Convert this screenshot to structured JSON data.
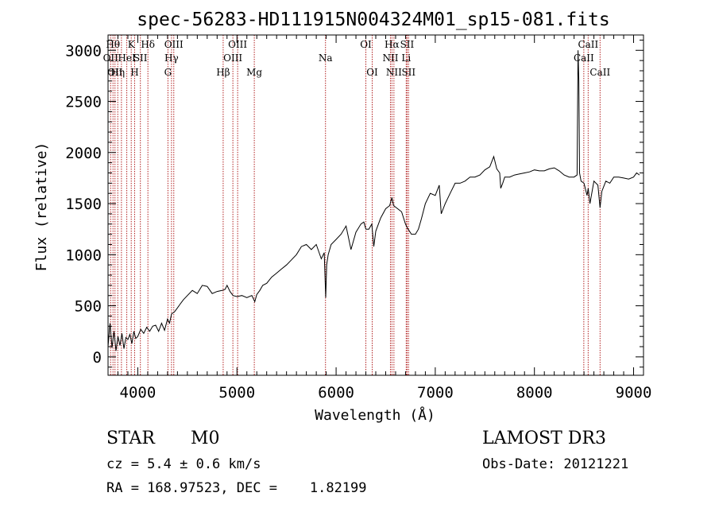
{
  "chart_data": {
    "type": "line",
    "title": "spec-56283-HD111915N004324M01_sp15-081.fits",
    "xlabel": "Wavelength (Å)",
    "ylabel": "Flux (relative)",
    "xlim": [
      3700,
      9100
    ],
    "ylim": [
      -180,
      3150
    ],
    "xticks": [
      4000,
      5000,
      6000,
      7000,
      8000,
      9000
    ],
    "yticks": [
      0,
      500,
      1000,
      1500,
      2000,
      2500,
      3000
    ],
    "series": [
      {
        "x": [
          3700,
          3720,
          3740,
          3760,
          3780,
          3800,
          3820,
          3840,
          3860,
          3880,
          3900,
          3920,
          3940,
          3960,
          3980,
          4000,
          4030,
          4060,
          4090,
          4120,
          4150,
          4180,
          4210,
          4240,
          4270,
          4300,
          4320,
          4340,
          4370,
          4400,
          4430,
          4460,
          4500,
          4550,
          4600,
          4650,
          4700,
          4750,
          4800,
          4850,
          4880,
          4900,
          4930,
          4960,
          5000,
          5050,
          5100,
          5150,
          5180,
          5200,
          5230,
          5260,
          5300,
          5350,
          5400,
          5450,
          5500,
          5550,
          5600,
          5650,
          5700,
          5750,
          5800,
          5850,
          5880,
          5895,
          5905,
          5920,
          5950,
          6000,
          6050,
          6100,
          6150,
          6200,
          6250,
          6280,
          6300,
          6330,
          6360,
          6380,
          6400,
          6450,
          6500,
          6540,
          6563,
          6580,
          6620,
          6660,
          6700,
          6720,
          6760,
          6800,
          6830,
          6860,
          6900,
          6950,
          7000,
          7040,
          7060,
          7080,
          7100,
          7150,
          7200,
          7250,
          7300,
          7350,
          7400,
          7450,
          7500,
          7550,
          7590,
          7620,
          7650,
          7660,
          7680,
          7700,
          7750,
          7800,
          7850,
          7900,
          7950,
          8000,
          8050,
          8100,
          8150,
          8200,
          8250,
          8300,
          8350,
          8400,
          8430,
          8440,
          8448,
          8455,
          8470,
          8500,
          8530,
          8542,
          8560,
          8600,
          8640,
          8662,
          8680,
          8720,
          8760,
          8800,
          8850,
          8900,
          8950,
          9000,
          9030,
          9060
        ],
        "y": [
          100,
          330,
          90,
          250,
          60,
          200,
          110,
          230,
          80,
          190,
          170,
          220,
          130,
          250,
          180,
          200,
          270,
          230,
          290,
          250,
          300,
          310,
          250,
          330,
          260,
          370,
          330,
          420,
          440,
          480,
          520,
          560,
          600,
          650,
          620,
          700,
          690,
          620,
          640,
          650,
          660,
          700,
          640,
          600,
          590,
          600,
          580,
          600,
          540,
          610,
          650,
          700,
          720,
          780,
          820,
          860,
          900,
          950,
          1000,
          1080,
          1100,
          1050,
          1100,
          960,
          1020,
          580,
          900,
          1000,
          1100,
          1150,
          1200,
          1280,
          1050,
          1220,
          1300,
          1320,
          1250,
          1250,
          1300,
          1080,
          1230,
          1360,
          1450,
          1480,
          1560,
          1480,
          1450,
          1420,
          1300,
          1260,
          1200,
          1200,
          1250,
          1350,
          1500,
          1600,
          1580,
          1680,
          1400,
          1450,
          1500,
          1600,
          1700,
          1700,
          1720,
          1760,
          1760,
          1780,
          1830,
          1860,
          1960,
          1840,
          1800,
          1650,
          1700,
          1760,
          1760,
          1780,
          1790,
          1800,
          1810,
          1830,
          1820,
          1820,
          1840,
          1850,
          1820,
          1780,
          1760,
          1760,
          1780,
          3000,
          2700,
          1800,
          1720,
          1700,
          1580,
          1650,
          1500,
          1720,
          1680,
          1460,
          1620,
          1720,
          1700,
          1760,
          1760,
          1750,
          1740,
          1760,
          1800,
          1780
        ]
      }
    ],
    "lines": [
      {
        "x": 3726,
        "label": "OII",
        "row": 1
      },
      {
        "x": 3750,
        "label": "Hθ",
        "row": 0
      },
      {
        "x": 3770,
        "label": "OII",
        "row": 2
      },
      {
        "x": 3798,
        "label": "Hη",
        "row": 2
      },
      {
        "x": 3835,
        "label": "",
        "row": 0
      },
      {
        "x": 3889,
        "label": "HeI",
        "row": 1
      },
      {
        "x": 3934,
        "label": "K",
        "row": 0
      },
      {
        "x": 3968,
        "label": "H",
        "row": 2
      },
      {
        "x": 4026,
        "label": "SII",
        "row": 1
      },
      {
        "x": 4102,
        "label": "Hδ",
        "row": 0
      },
      {
        "x": 4304,
        "label": "G",
        "row": 2
      },
      {
        "x": 4340,
        "label": "Hγ",
        "row": 1
      },
      {
        "x": 4363,
        "label": "OIII",
        "row": 0
      },
      {
        "x": 4861,
        "label": "Hβ",
        "row": 2
      },
      {
        "x": 4959,
        "label": "OIII",
        "row": 1
      },
      {
        "x": 5007,
        "label": "OIII",
        "row": 0
      },
      {
        "x": 5175,
        "label": "Mg",
        "row": 2
      },
      {
        "x": 5893,
        "label": "Na",
        "row": 1
      },
      {
        "x": 6300,
        "label": "OI",
        "row": 0
      },
      {
        "x": 6364,
        "label": "OI",
        "row": 2
      },
      {
        "x": 6548,
        "label": "NII",
        "row": 1
      },
      {
        "x": 6563,
        "label": "Hα",
        "row": 0
      },
      {
        "x": 6583,
        "label": "NII",
        "row": 2
      },
      {
        "x": 6707,
        "label": "Li",
        "row": 1
      },
      {
        "x": 6716,
        "label": "SII",
        "row": 0
      },
      {
        "x": 6731,
        "label": "SII",
        "row": 2
      },
      {
        "x": 8498,
        "label": "CaII",
        "row": 1
      },
      {
        "x": 8542,
        "label": "CaII",
        "row": 0
      },
      {
        "x": 8662,
        "label": "CaII",
        "row": 2
      }
    ],
    "grid": false,
    "colors": {
      "spectrum": "#000000",
      "lines": "#b22222"
    }
  },
  "footer": {
    "object_class": "STAR",
    "subclass": "M0",
    "survey": "LAMOST DR3",
    "cz": "cz = 5.4 ± 0.6 km/s",
    "obs_date": "Obs-Date: 20121221",
    "coords": "RA = 168.97523, DEC =    1.82199"
  }
}
